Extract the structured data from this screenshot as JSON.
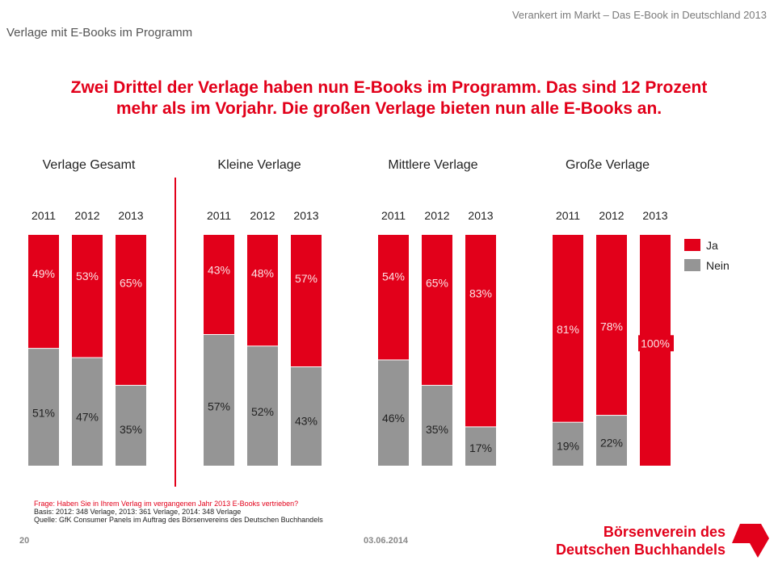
{
  "header": {
    "subtitle": "Verankert im Markt – Das E-Book in Deutschland 2013",
    "section_title": "Verlage mit E-Books im Programm",
    "headline_line1": "Zwei Drittel der Verlage haben nun E-Books im Programm. Das sind 12 Prozent",
    "headline_line2": "mehr als im Vorjahr. Die großen Verlage bieten nun alle E-Books an."
  },
  "colors": {
    "ja": "#e2001a",
    "nein": "#959595",
    "accent": "#e2001a"
  },
  "chart_data": {
    "type": "bar",
    "stacked": true,
    "percent": true,
    "title": "Verlage mit E-Books im Programm",
    "legend": {
      "entries": [
        "Ja",
        "Nein"
      ],
      "position": "top-right"
    },
    "ylim": [
      0,
      100
    ],
    "groups": [
      {
        "name": "Verlage Gesamt",
        "categories": [
          "2011",
          "2012",
          "2013"
        ],
        "series": [
          {
            "name": "Ja",
            "values": [
              49,
              53,
              65
            ]
          },
          {
            "name": "Nein",
            "values": [
              51,
              47,
              35
            ]
          }
        ]
      },
      {
        "name": "Kleine Verlage",
        "categories": [
          "2011",
          "2012",
          "2013"
        ],
        "series": [
          {
            "name": "Ja",
            "values": [
              43,
              48,
              57
            ]
          },
          {
            "name": "Nein",
            "values": [
              57,
              52,
              43
            ]
          }
        ]
      },
      {
        "name": "Mittlere Verlage",
        "categories": [
          "2011",
          "2012",
          "2013"
        ],
        "series": [
          {
            "name": "Ja",
            "values": [
              54,
              65,
              83
            ]
          },
          {
            "name": "Nein",
            "values": [
              46,
              35,
              17
            ]
          }
        ]
      },
      {
        "name": "Große Verlage",
        "categories": [
          "2011",
          "2012",
          "2013"
        ],
        "series": [
          {
            "name": "Ja",
            "values": [
              81,
              78,
              100
            ]
          },
          {
            "name": "Nein",
            "values": [
              19,
              22,
              0
            ]
          }
        ]
      }
    ]
  },
  "footer": {
    "question": "Frage: Haben Sie in Ihrem Verlag im vergangenen Jahr 2013 E-Books vertrieben?",
    "basis": "Basis: 2012: 348 Verlage, 2013: 361 Verlage, 2014: 348 Verlage",
    "source": "Quelle: GfK Consumer Panels im Auftrag des Börsenvereins des Deutschen Buchhandels",
    "page_number": "20",
    "date": "03.06.2014",
    "logo_line1": "Börsenverein des",
    "logo_line2": "Deutschen Buchhandels",
    "logo_icon": "boersenverein-logo-icon"
  }
}
